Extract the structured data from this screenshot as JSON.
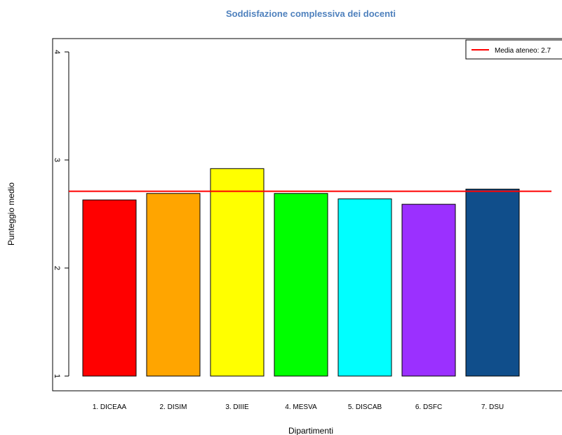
{
  "chart_data": {
    "type": "bar",
    "title": "Soddisfazione complessiva dei docenti",
    "xlabel": "Dipartimenti",
    "ylabel": "Punteggio medio",
    "ylim": [
      1,
      4
    ],
    "yticks": [
      "1",
      "2",
      "3",
      "4"
    ],
    "categories": [
      "1. DICEAA",
      "2. DISIM",
      "3. DIIIE",
      "4. MESVA",
      "5. DISCAB",
      "6. DSFC",
      "7. DSU"
    ],
    "values": [
      2.63,
      2.69,
      2.92,
      2.69,
      2.64,
      2.59,
      2.73
    ],
    "colors": [
      "#ff0000",
      "#ffa500",
      "#ffff00",
      "#00ff00",
      "#00ffff",
      "#9b30ff",
      "#104e8b"
    ],
    "reference_line": {
      "label": "Media ateneo:  2.7",
      "value": 2.71,
      "color": "#ff0000"
    },
    "legend_position": "top-right",
    "grid": false
  }
}
